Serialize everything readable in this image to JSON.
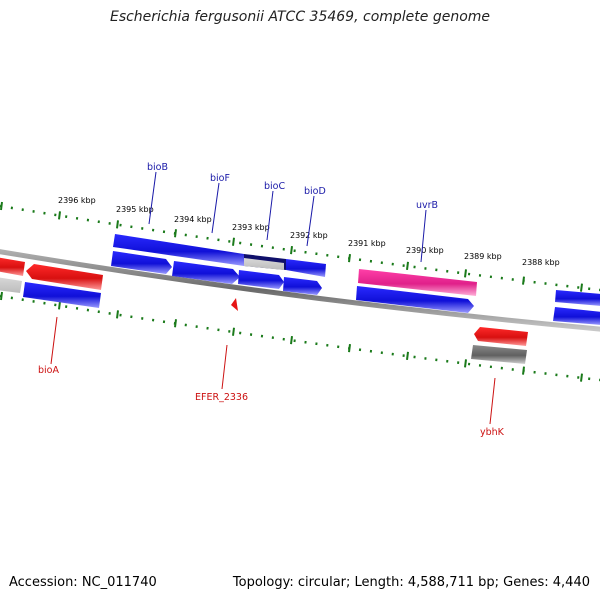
{
  "title": "Escherichia fergusonii ATCC 35469, complete genome",
  "footer": {
    "accession": "Accession: NC_011740",
    "summary": "Topology: circular; Length: 4,588,711 bp; Genes: 4,440"
  },
  "colors": {
    "backbone": "#8a8a8a",
    "ticks": "#1a7a1a",
    "cds_forward": "#1414e6",
    "cds_reverse": "#e61414",
    "cds_highlight": "#e6208c",
    "pseudo": "#707070",
    "label_blue": "#1a1aa8",
    "label_red": "#cc1111"
  },
  "scale": {
    "tick_labels": [
      "2396 kbp",
      "2395 kbp",
      "2394 kbp",
      "2393 kbp",
      "2392 kbp",
      "2391 kbp",
      "2390 kbp",
      "2389 kbp",
      "2388 kbp"
    ]
  },
  "gene_labels": {
    "top": [
      "bioB",
      "bioF",
      "bioC",
      "bioD",
      "uvrB"
    ],
    "bottom": [
      "bioA",
      "EFER_2336",
      "ybhK"
    ]
  }
}
